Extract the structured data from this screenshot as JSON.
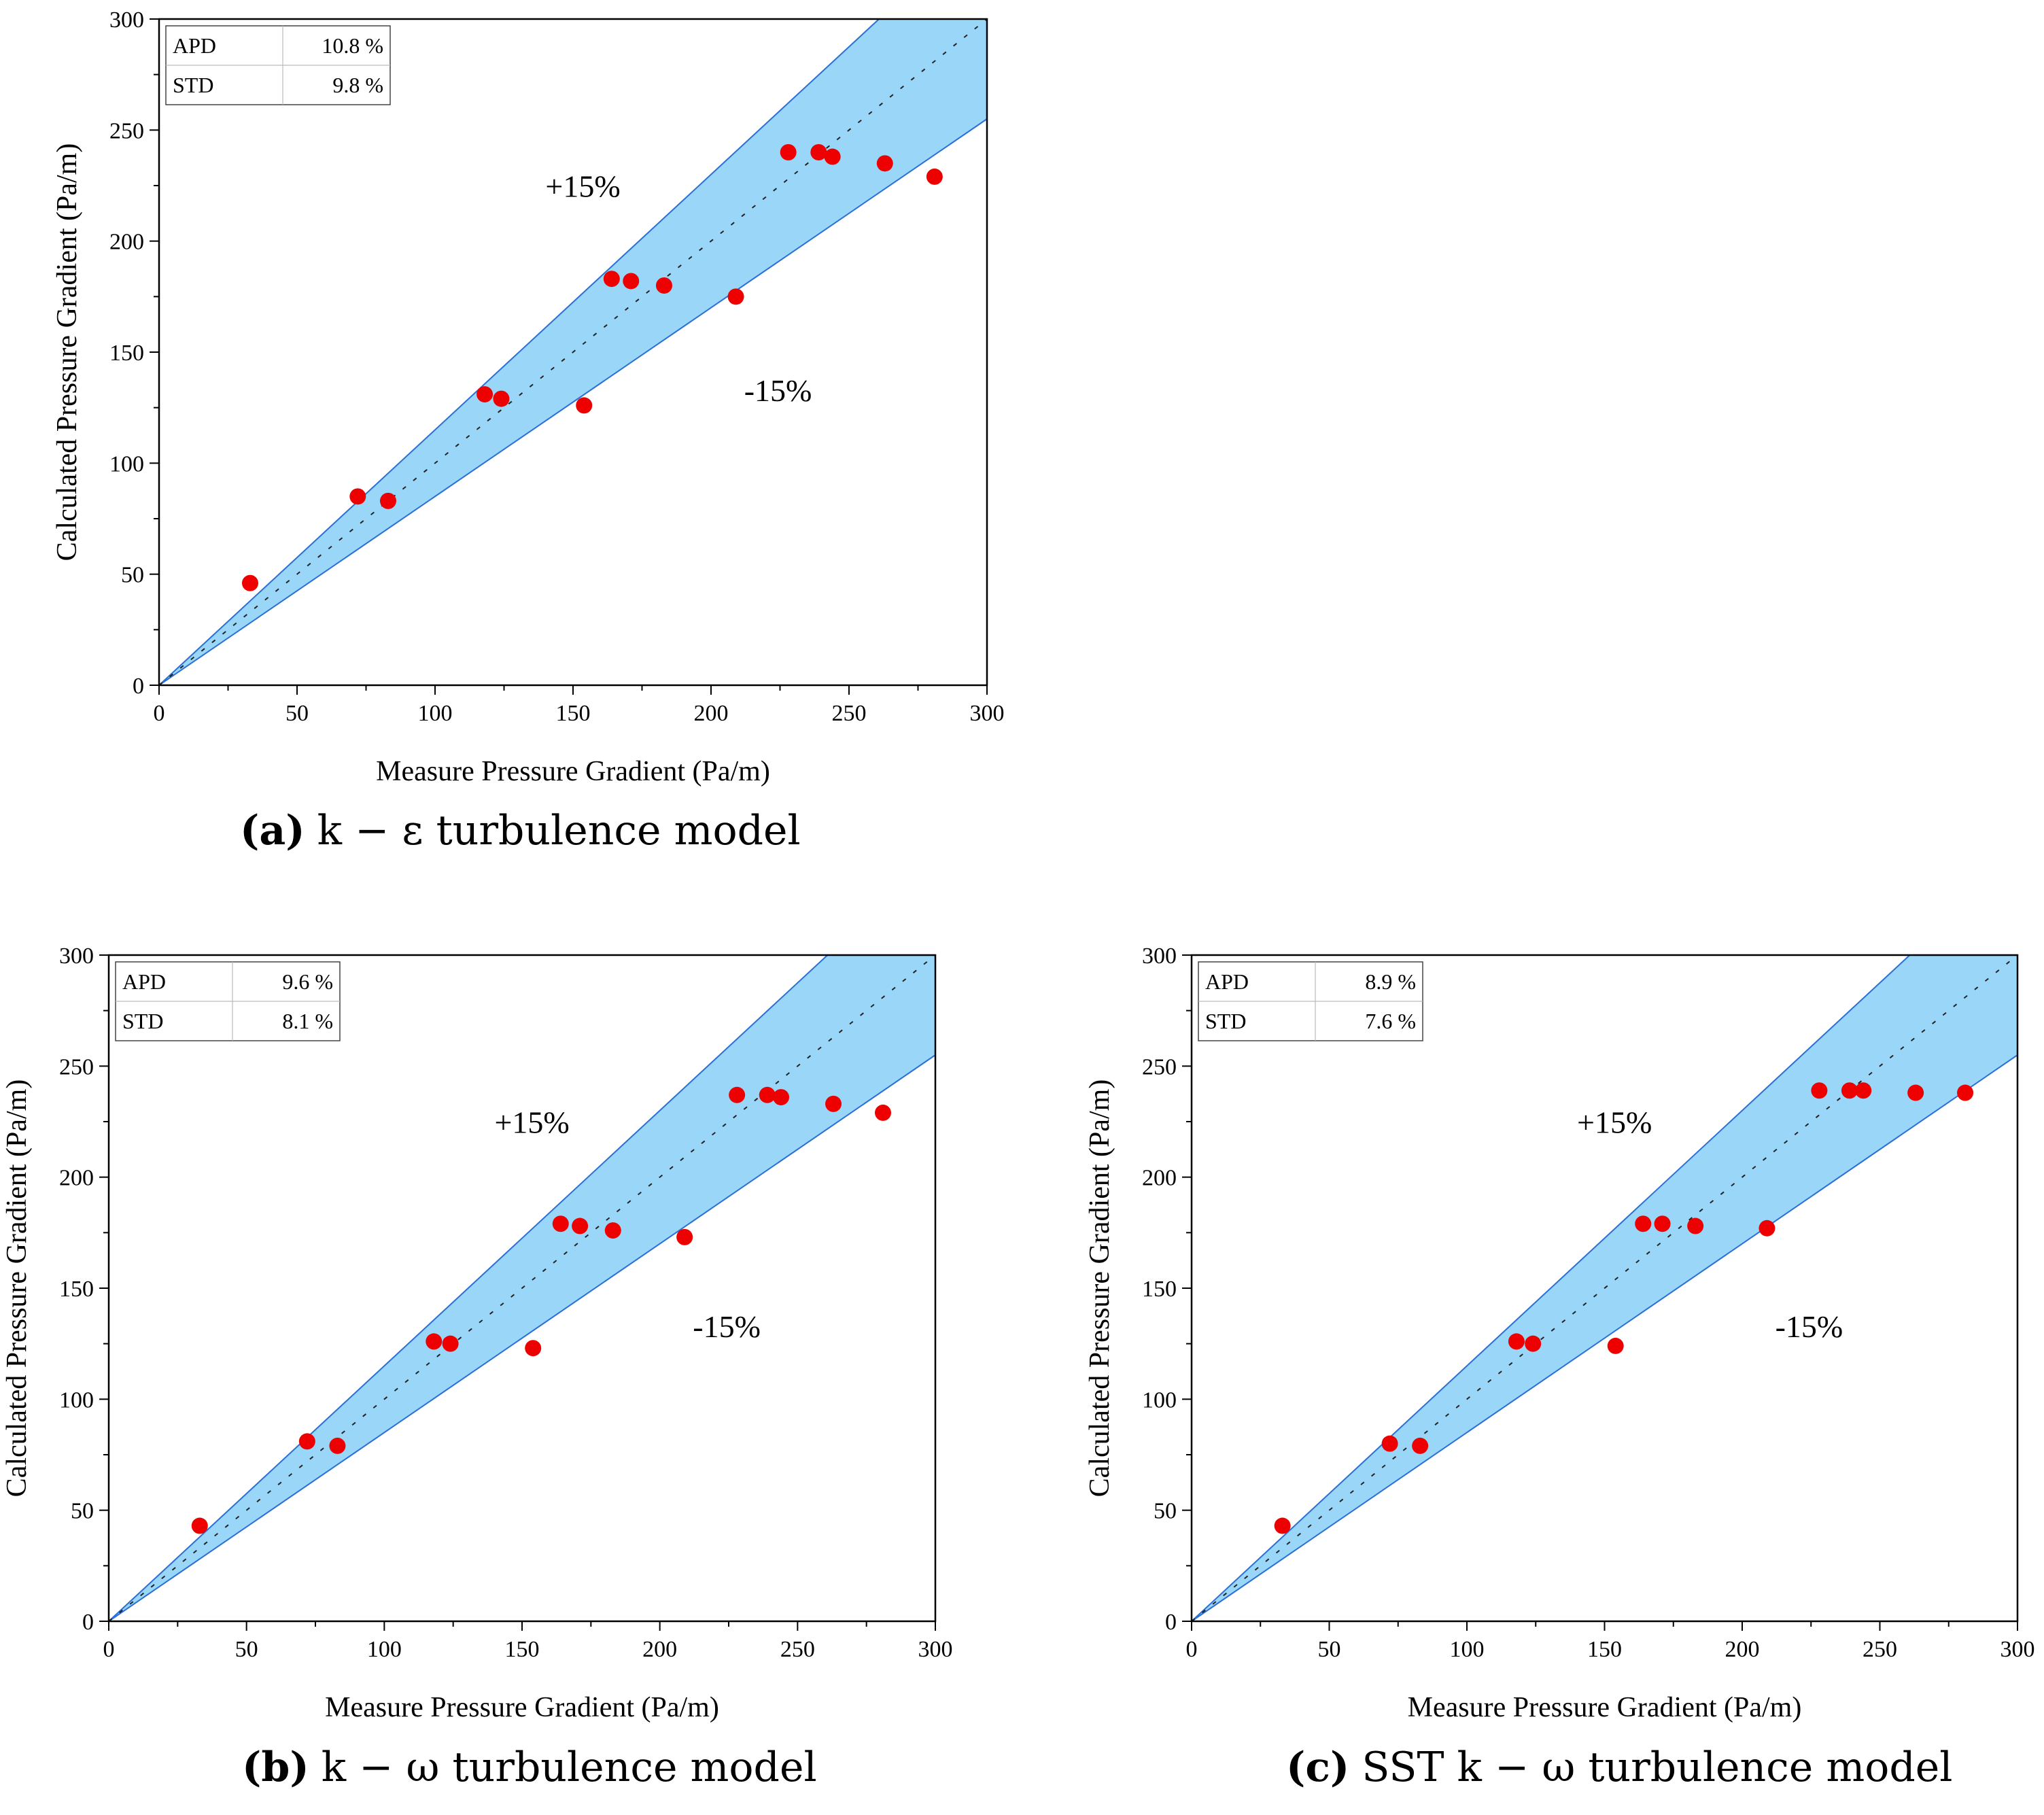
{
  "figure": {
    "xlabel": "Measure Pressure Gradient (Pa/m)",
    "ylabel": "Calculated Pressure Gradient (Pa/m)"
  },
  "chart_data": [
    {
      "type": "scatter",
      "panel": "a",
      "caption": {
        "letter": "(a)",
        "model": "k − ε turbulence model"
      },
      "xlabel": "Measure Pressure Gradient (Pa/m)",
      "ylabel": "Calculated Pressure Gradient (Pa/m)",
      "xlim": [
        0,
        300
      ],
      "ylim": [
        0,
        300
      ],
      "xticks": [
        0,
        50,
        100,
        150,
        200,
        250,
        300
      ],
      "yticks": [
        0,
        50,
        100,
        150,
        200,
        250,
        300
      ],
      "band": {
        "upper_label": "+15%",
        "lower_label": "-15%",
        "upper_factor": 1.15,
        "lower_factor": 0.85
      },
      "stats": [
        {
          "name": "APD",
          "value": "10.8 %"
        },
        {
          "name": "STD",
          "value": "9.8 %"
        }
      ],
      "points": [
        {
          "x": 33,
          "y": 46
        },
        {
          "x": 72,
          "y": 85
        },
        {
          "x": 83,
          "y": 83
        },
        {
          "x": 118,
          "y": 131
        },
        {
          "x": 124,
          "y": 129
        },
        {
          "x": 154,
          "y": 126
        },
        {
          "x": 164,
          "y": 183
        },
        {
          "x": 171,
          "y": 182
        },
        {
          "x": 183,
          "y": 180
        },
        {
          "x": 209,
          "y": 175
        },
        {
          "x": 228,
          "y": 240
        },
        {
          "x": 239,
          "y": 240
        },
        {
          "x": 244,
          "y": 238
        },
        {
          "x": 263,
          "y": 235
        },
        {
          "x": 281,
          "y": 229
        }
      ]
    },
    {
      "type": "scatter",
      "panel": "b",
      "caption": {
        "letter": "(b)",
        "model": "k − ω turbulence model"
      },
      "xlabel": "Measure Pressure Gradient (Pa/m)",
      "ylabel": "Calculated Pressure Gradient (Pa/m)",
      "xlim": [
        0,
        300
      ],
      "ylim": [
        0,
        300
      ],
      "xticks": [
        0,
        50,
        100,
        150,
        200,
        250,
        300
      ],
      "yticks": [
        0,
        50,
        100,
        150,
        200,
        250,
        300
      ],
      "band": {
        "upper_label": "+15%",
        "lower_label": "-15%",
        "upper_factor": 1.15,
        "lower_factor": 0.85
      },
      "stats": [
        {
          "name": "APD",
          "value": "9.6 %"
        },
        {
          "name": "STD",
          "value": "8.1 %"
        }
      ],
      "points": [
        {
          "x": 33,
          "y": 43
        },
        {
          "x": 72,
          "y": 81
        },
        {
          "x": 83,
          "y": 79
        },
        {
          "x": 118,
          "y": 126
        },
        {
          "x": 124,
          "y": 125
        },
        {
          "x": 154,
          "y": 123
        },
        {
          "x": 164,
          "y": 179
        },
        {
          "x": 171,
          "y": 178
        },
        {
          "x": 183,
          "y": 176
        },
        {
          "x": 209,
          "y": 173
        },
        {
          "x": 228,
          "y": 237
        },
        {
          "x": 239,
          "y": 237
        },
        {
          "x": 244,
          "y": 236
        },
        {
          "x": 263,
          "y": 233
        },
        {
          "x": 281,
          "y": 229
        }
      ]
    },
    {
      "type": "scatter",
      "panel": "c",
      "caption": {
        "letter": "(c)",
        "model": "SST k − ω turbulence model"
      },
      "xlabel": "Measure Pressure Gradient (Pa/m)",
      "ylabel": "Calculated Pressure Gradient (Pa/m)",
      "xlim": [
        0,
        300
      ],
      "ylim": [
        0,
        300
      ],
      "xticks": [
        0,
        50,
        100,
        150,
        200,
        250,
        300
      ],
      "yticks": [
        0,
        50,
        100,
        150,
        200,
        250,
        300
      ],
      "band": {
        "upper_label": "+15%",
        "lower_label": "-15%",
        "upper_factor": 1.15,
        "lower_factor": 0.85
      },
      "stats": [
        {
          "name": "APD",
          "value": "8.9 %"
        },
        {
          "name": "STD",
          "value": "7.6 %"
        }
      ],
      "points": [
        {
          "x": 33,
          "y": 43
        },
        {
          "x": 72,
          "y": 80
        },
        {
          "x": 83,
          "y": 79
        },
        {
          "x": 118,
          "y": 126
        },
        {
          "x": 124,
          "y": 125
        },
        {
          "x": 154,
          "y": 124
        },
        {
          "x": 164,
          "y": 179
        },
        {
          "x": 171,
          "y": 179
        },
        {
          "x": 183,
          "y": 178
        },
        {
          "x": 209,
          "y": 177
        },
        {
          "x": 228,
          "y": 239
        },
        {
          "x": 239,
          "y": 239
        },
        {
          "x": 244,
          "y": 239
        },
        {
          "x": 263,
          "y": 238
        },
        {
          "x": 281,
          "y": 238
        }
      ]
    }
  ],
  "colors": {
    "band_fill": "#99d6f8",
    "band_edge": "#2a6fd6",
    "diagonal": "#222222",
    "point": "#ee0000",
    "axis": "#000000"
  }
}
